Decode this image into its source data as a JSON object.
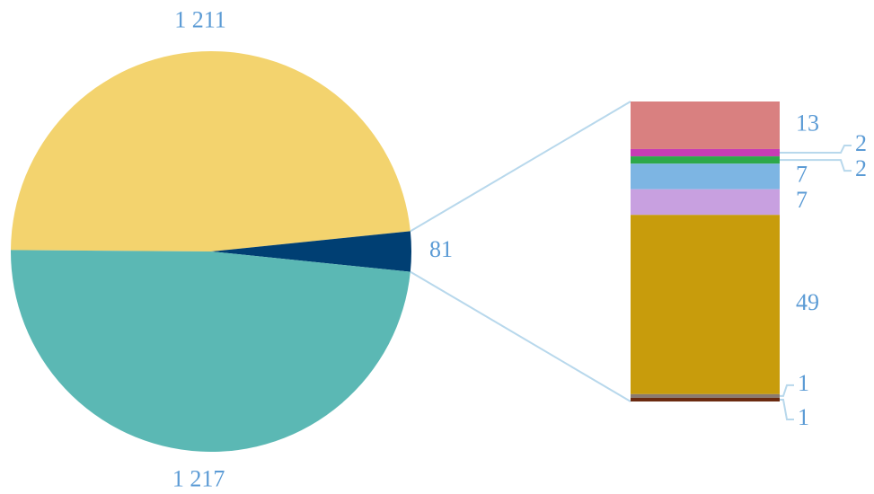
{
  "chart_data": {
    "type": "bar-of-pie",
    "values": [
      1211,
      81,
      1217
    ],
    "value_labels": [
      "1 211",
      "81",
      "1 217"
    ],
    "colors": [
      "#f3d36e",
      "#003f73",
      "#5bb8b4"
    ],
    "breakdown": {
      "values": [
        13,
        2,
        2,
        7,
        7,
        49,
        1,
        1
      ],
      "colors": [
        "#d98080",
        "#c83cb4",
        "#2ea84a",
        "#7db5e3",
        "#c8a0e0",
        "#c89c0c",
        "#8a7a70",
        "#6b2a10"
      ]
    }
  }
}
